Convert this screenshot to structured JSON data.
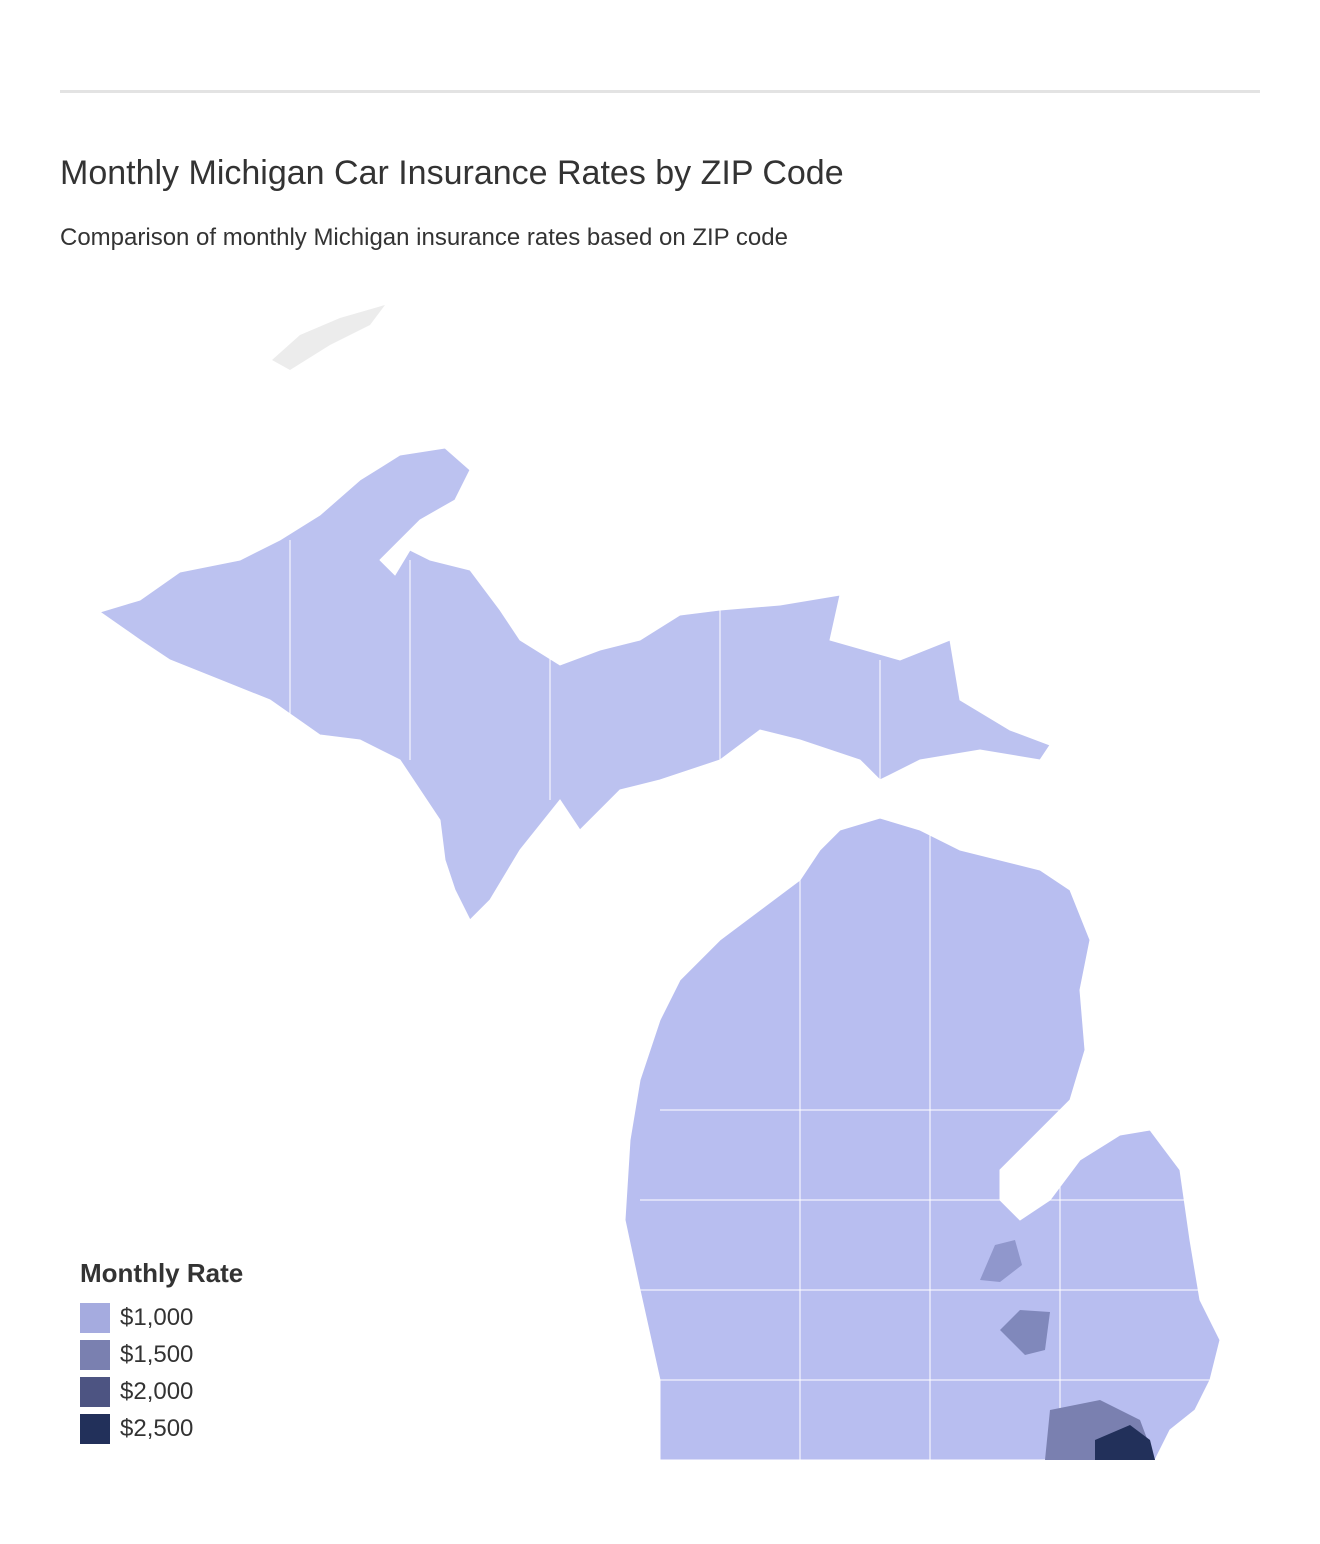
{
  "header": {
    "title": "Monthly Michigan Car Insurance Rates by ZIP Code",
    "subtitle": "Comparison of monthly Michigan insurance rates based on ZIP code"
  },
  "legend": {
    "title": "Monthly Rate",
    "items": [
      {
        "value": 1000,
        "label": "$1,000",
        "color": "#a5abdf"
      },
      {
        "value": 1500,
        "label": "$1,500",
        "color": "#7a80b0"
      },
      {
        "value": 2000,
        "label": "$2,000",
        "color": "#4d5482"
      },
      {
        "value": 2500,
        "label": "$2,500",
        "color": "#22305a"
      }
    ]
  }
}
